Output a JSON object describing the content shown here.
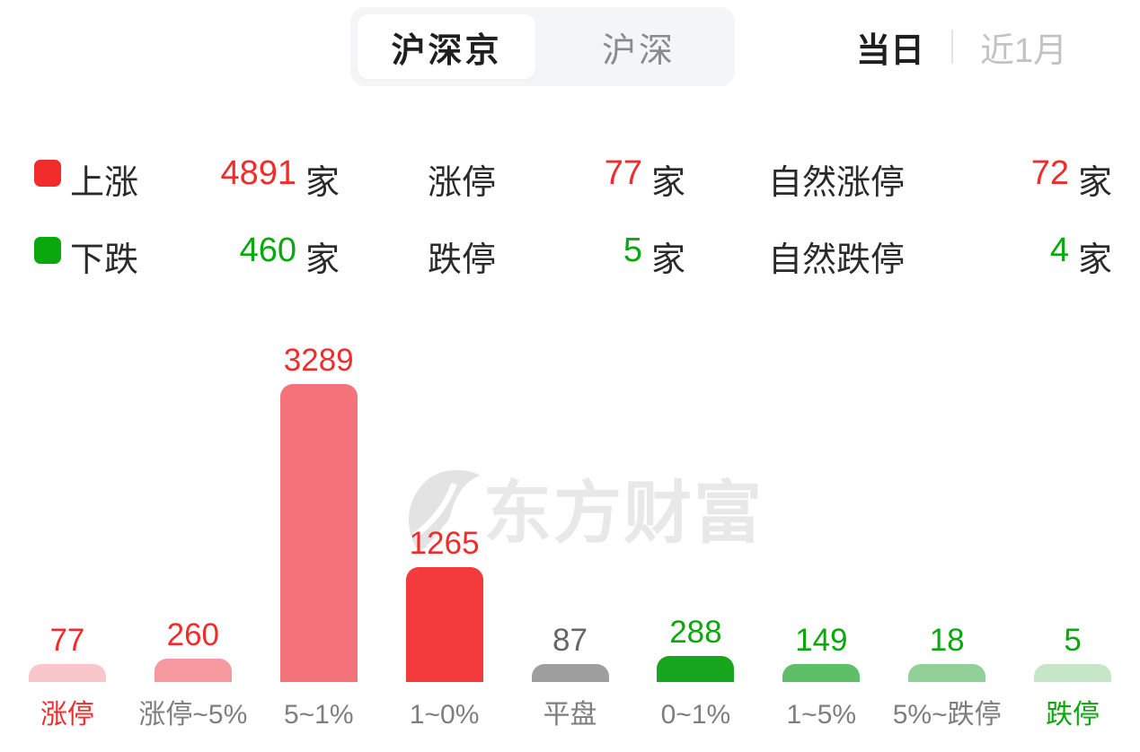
{
  "header": {
    "market_tabs": [
      {
        "label": "沪深京",
        "active": true
      },
      {
        "label": "沪深",
        "active": false
      }
    ],
    "period_options": [
      {
        "label": "当日",
        "active": true
      },
      {
        "label": "近1月",
        "active": false
      }
    ]
  },
  "stats": {
    "unit": "家",
    "rows": [
      {
        "legend_color": "#f22b2b",
        "label": "上涨",
        "value": "4891",
        "limit_label": "涨停",
        "limit_value": "77",
        "natural_label": "自然涨停",
        "natural_value": "72",
        "value_color": "#f22b2b"
      },
      {
        "legend_color": "#0aa70d",
        "label": "下跌",
        "value": "460",
        "limit_label": "跌停",
        "limit_value": "5",
        "natural_label": "自然跌停",
        "natural_value": "4",
        "value_color": "#0aa70d"
      }
    ]
  },
  "watermark": {
    "text": "东方财富"
  },
  "chart_data": {
    "type": "bar",
    "title": "",
    "xlabel": "",
    "ylabel": "",
    "ylim": [
      0,
      3289
    ],
    "grid": false,
    "legend_position": "none",
    "categories": [
      "涨停",
      "涨停~5%",
      "5~1%",
      "1~0%",
      "平盘",
      "0~1%",
      "1~5%",
      "5%~跌停",
      "跌停"
    ],
    "values": [
      77,
      260,
      3289,
      1265,
      87,
      288,
      149,
      18,
      5
    ],
    "bar_colors": [
      "#f9c7cb",
      "#f5989f",
      "#f4737a",
      "#f33b3d",
      "#9e9e9e",
      "#18a51e",
      "#5fbe68",
      "#92d098",
      "#c5e7c8"
    ],
    "value_colors": [
      "#f22b2b",
      "#f22b2b",
      "#f22b2b",
      "#f22b2b",
      "#666666",
      "#0aa70d",
      "#0aa70d",
      "#0aa70d",
      "#0aa70d"
    ],
    "label_colors": [
      "#f22b2b",
      "#7e7e7e",
      "#7e7e7e",
      "#7e7e7e",
      "#7e7e7e",
      "#7e7e7e",
      "#7e7e7e",
      "#7e7e7e",
      "#0aa70d"
    ]
  }
}
